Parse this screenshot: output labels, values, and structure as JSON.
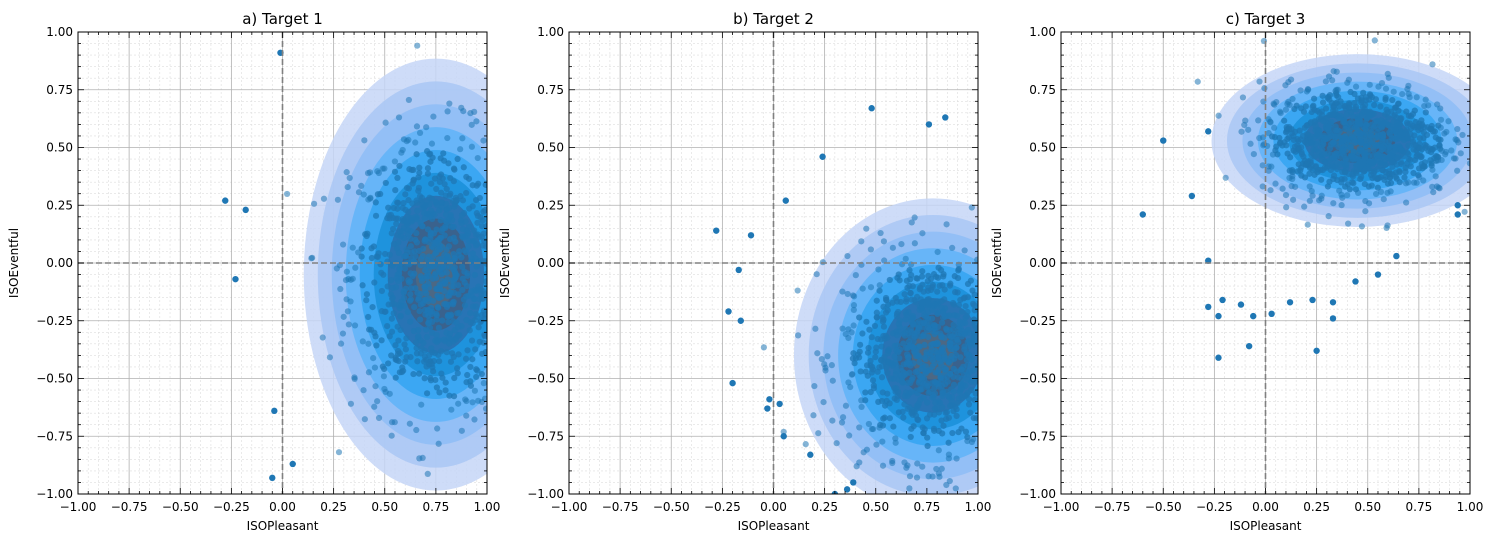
{
  "chart_data": [
    {
      "type": "scatter",
      "title": "a) Target 1",
      "xlabel": "ISOPleasant",
      "ylabel": "ISOEventful",
      "xlim": [
        -1,
        1
      ],
      "ylim": [
        -1,
        1
      ],
      "xticks": [
        "−1.00",
        "−0.75",
        "−0.50",
        "−0.25",
        "0.00",
        "0.25",
        "0.50",
        "0.75",
        "1.00"
      ],
      "yticks": [
        "−1.00",
        "−0.75",
        "−0.50",
        "−0.25",
        "0.00",
        "0.25",
        "0.50",
        "0.75",
        "1.00"
      ],
      "grid": true,
      "density_center": [
        0.75,
        -0.05
      ],
      "density_spread": [
        0.38,
        0.55
      ],
      "outliers": [
        [
          -0.28,
          0.27
        ],
        [
          -0.18,
          0.23
        ],
        [
          -0.23,
          -0.07
        ],
        [
          -0.01,
          0.91
        ],
        [
          -0.04,
          -0.64
        ],
        [
          0.05,
          -0.87
        ],
        [
          -0.05,
          -0.93
        ]
      ]
    },
    {
      "type": "scatter",
      "title": "b) Target 2",
      "xlabel": "ISOPleasant",
      "ylabel": "ISOEventful",
      "xlim": [
        -1,
        1
      ],
      "ylim": [
        -1,
        1
      ],
      "xticks": [
        "−1.00",
        "−0.75",
        "−0.50",
        "−0.25",
        "0.00",
        "0.25",
        "0.50",
        "0.75",
        "1.00"
      ],
      "yticks": [
        "−1.00",
        "−0.75",
        "−0.50",
        "−0.25",
        "0.00",
        "0.25",
        "0.50",
        "0.75",
        "1.00"
      ],
      "grid": true,
      "density_center": [
        0.78,
        -0.4
      ],
      "density_spread": [
        0.4,
        0.4
      ],
      "outliers": [
        [
          -0.28,
          0.14
        ],
        [
          -0.11,
          0.12
        ],
        [
          -0.17,
          -0.03
        ],
        [
          -0.22,
          -0.21
        ],
        [
          -0.16,
          -0.25
        ],
        [
          -0.2,
          -0.52
        ],
        [
          0.24,
          0.46
        ],
        [
          0.48,
          0.67
        ],
        [
          0.76,
          0.6
        ],
        [
          0.84,
          0.63
        ],
        [
          0.06,
          0.27
        ],
        [
          -0.03,
          -0.63
        ],
        [
          -0.02,
          -0.59
        ],
        [
          0.03,
          -0.61
        ],
        [
          0.05,
          -0.75
        ],
        [
          0.18,
          -0.83
        ],
        [
          0.3,
          -1.0
        ],
        [
          0.36,
          -0.98
        ],
        [
          0.39,
          -0.95
        ]
      ]
    },
    {
      "type": "scatter",
      "title": "c) Target 3",
      "xlabel": "ISOPleasant",
      "ylabel": "ISOEventful",
      "xlim": [
        -1,
        1
      ],
      "ylim": [
        -1,
        1
      ],
      "xticks": [
        "−1.00",
        "−0.75",
        "−0.50",
        "−0.25",
        "0.00",
        "0.25",
        "0.50",
        "0.75",
        "1.00"
      ],
      "yticks": [
        "−1.00",
        "−0.75",
        "−0.50",
        "−0.25",
        "0.00",
        "0.25",
        "0.50",
        "0.75",
        "1.00"
      ],
      "grid": true,
      "density_center": [
        0.45,
        0.53
      ],
      "density_spread": [
        0.42,
        0.22
      ],
      "outliers": [
        [
          -0.6,
          0.21
        ],
        [
          -0.5,
          0.53
        ],
        [
          -0.36,
          0.29
        ],
        [
          -0.28,
          0.57
        ],
        [
          -0.28,
          0.01
        ],
        [
          -0.28,
          -0.19
        ],
        [
          -0.23,
          -0.23
        ],
        [
          -0.21,
          -0.16
        ],
        [
          -0.23,
          -0.41
        ],
        [
          -0.12,
          -0.18
        ],
        [
          -0.06,
          -0.23
        ],
        [
          -0.08,
          -0.36
        ],
        [
          0.03,
          -0.22
        ],
        [
          0.12,
          -0.17
        ],
        [
          0.23,
          -0.16
        ],
        [
          0.25,
          -0.38
        ],
        [
          0.33,
          -0.17
        ],
        [
          0.33,
          -0.24
        ],
        [
          0.44,
          -0.08
        ],
        [
          0.55,
          -0.05
        ],
        [
          0.64,
          0.03
        ],
        [
          0.94,
          0.25
        ],
        [
          0.94,
          0.21
        ]
      ]
    }
  ],
  "colors": {
    "point": "#1f77b4",
    "density_levels": [
      "#c5d6f7",
      "#a9c7f5",
      "#8ebdf6",
      "#5fb3f8",
      "#34a4f2",
      "#1a8fd8",
      "#2a6fae",
      "#3d5f86",
      "#506a82"
    ],
    "grid_major": "#b0b0b0",
    "grid_minor": "#dddddd",
    "zero_line": "#808080"
  }
}
